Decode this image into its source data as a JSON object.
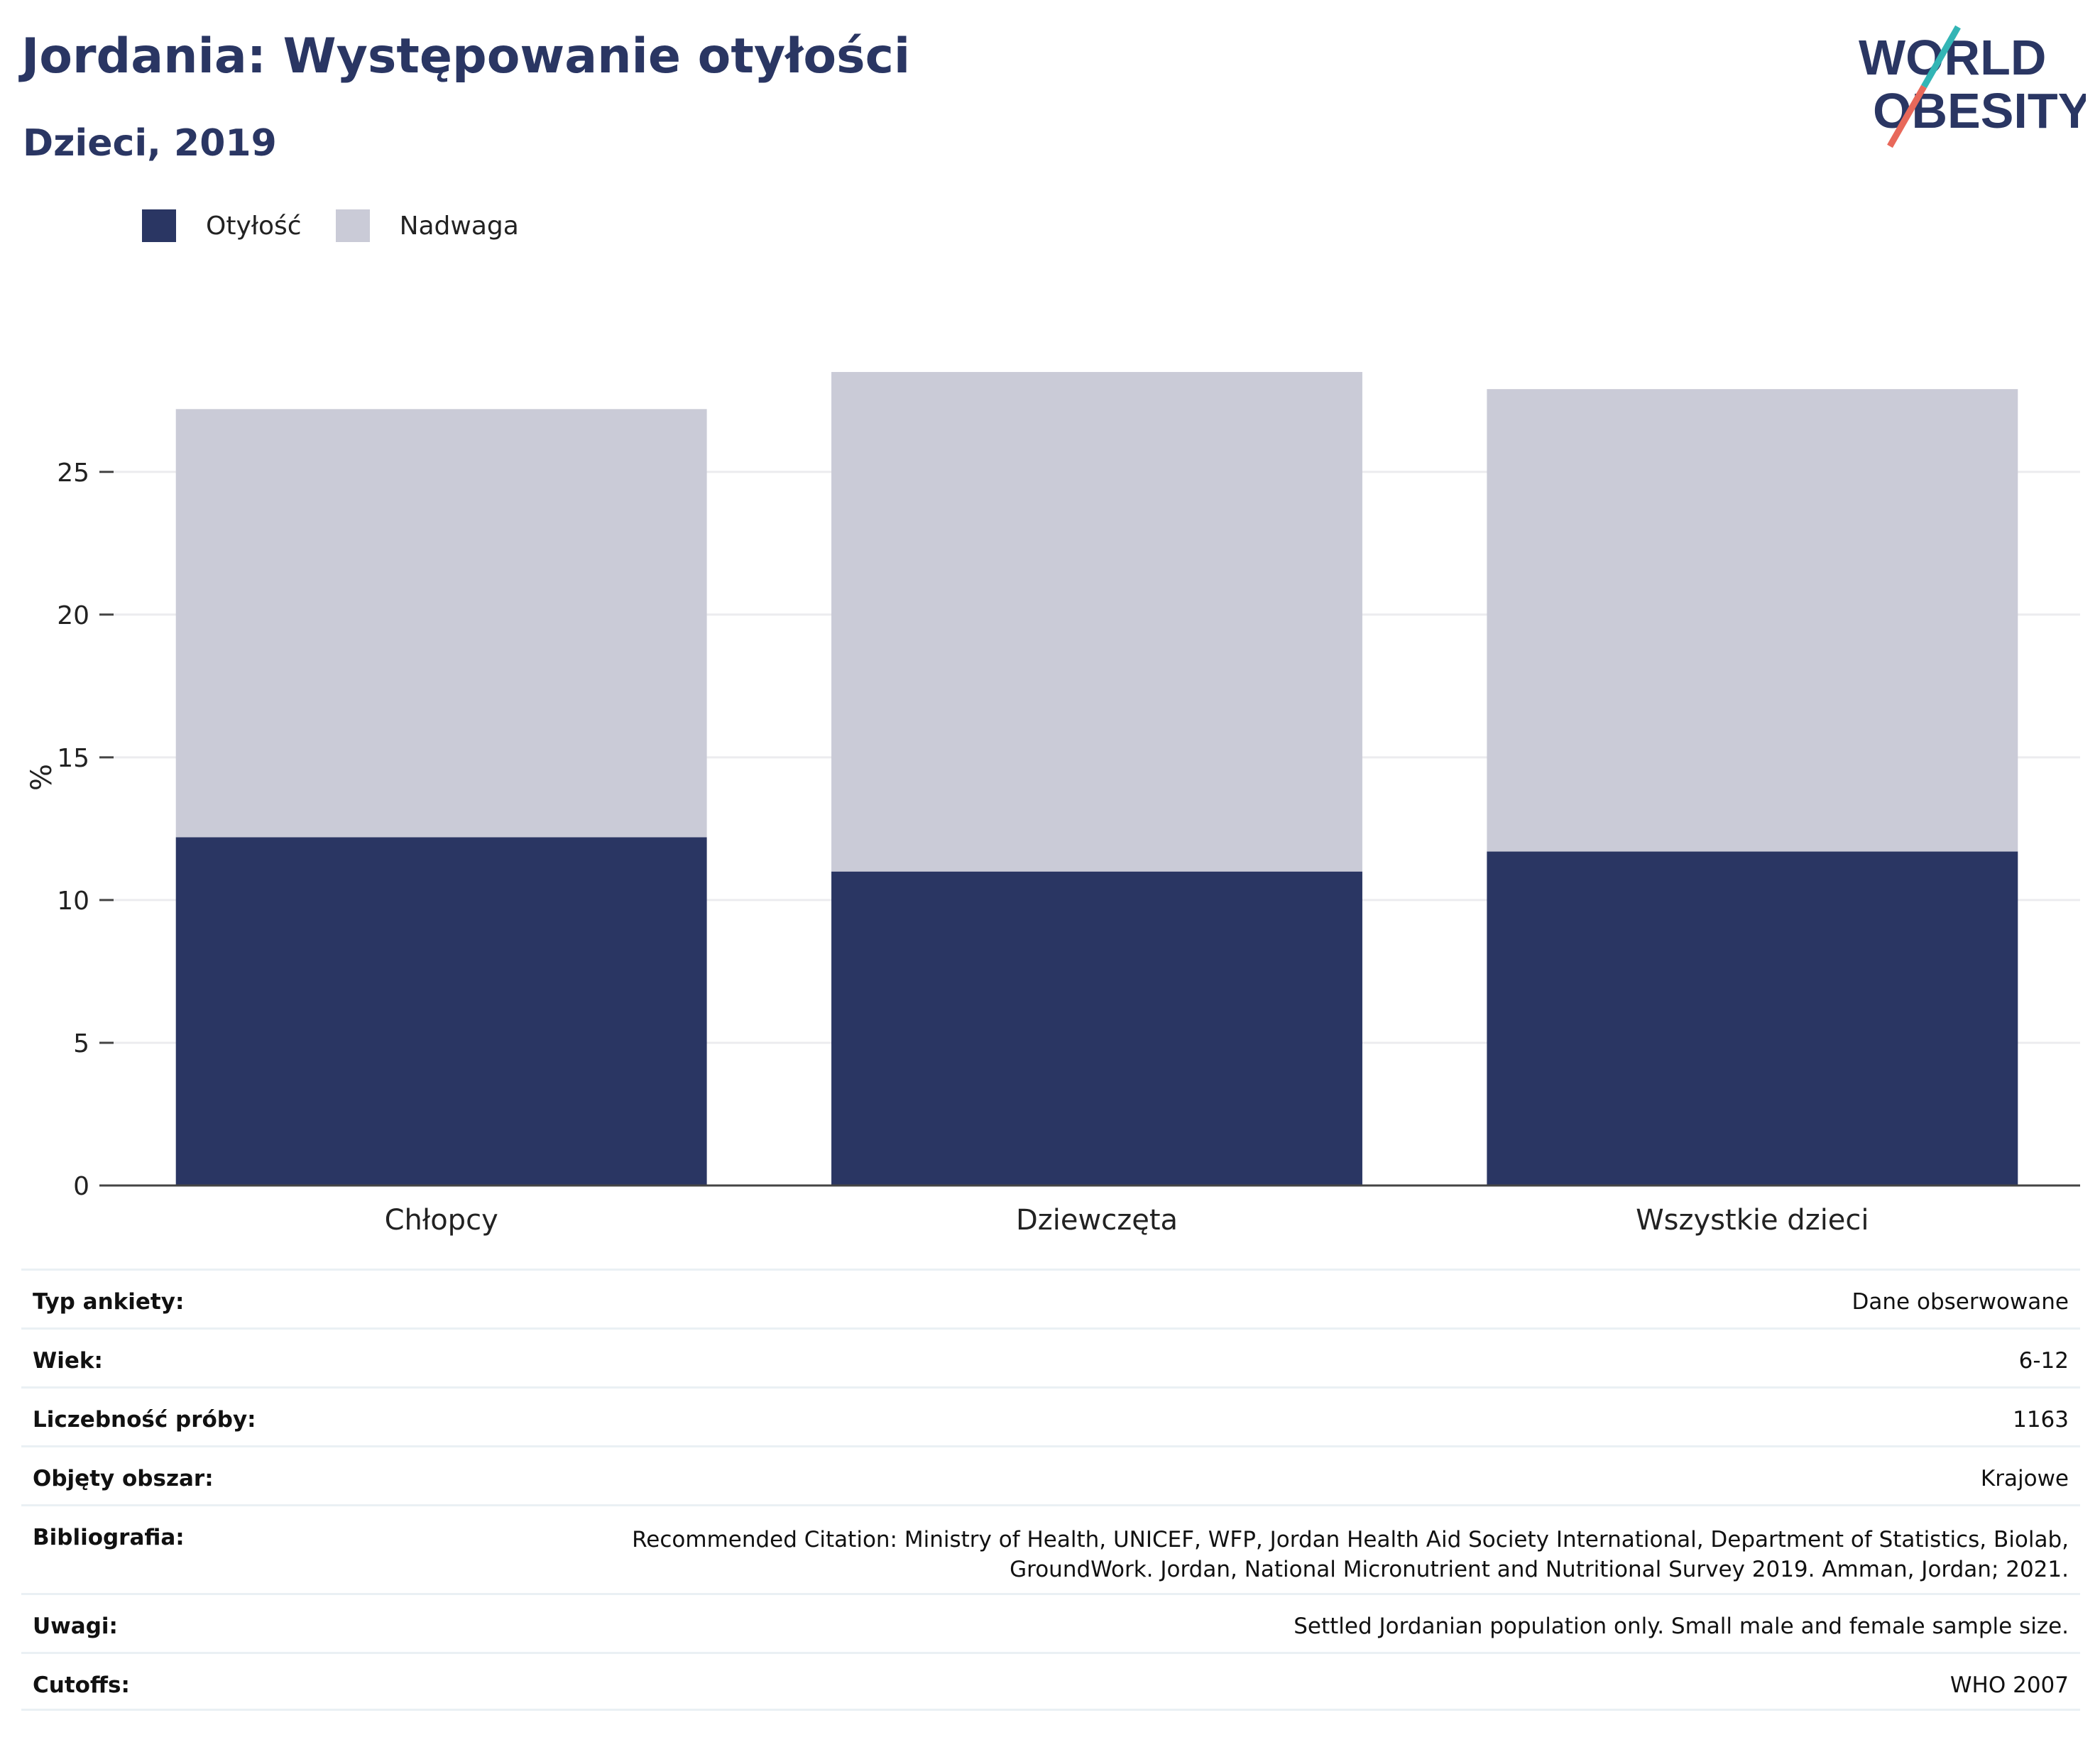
{
  "header": {
    "title": "Jordania: Występowanie otyłości",
    "subtitle": "Dzieci, 2019"
  },
  "logo": {
    "line1": "WORLD",
    "line2": "OBESITY",
    "colors": {
      "text": "#2a3663",
      "slash_top": "#33b5b5",
      "slash_bottom": "#e8685a"
    }
  },
  "legend": [
    {
      "label": "Otyłość",
      "color": "#2a3663"
    },
    {
      "label": "Nadwaga",
      "color": "#cacbd7"
    }
  ],
  "chart_data": {
    "type": "bar",
    "stacked": true,
    "categories": [
      "Chłopcy",
      "Dziewczęta",
      "Wszystkie dzieci"
    ],
    "series": [
      {
        "name": "Otyłość",
        "values": [
          12.2,
          11.0,
          11.7
        ],
        "color": "#2a3663"
      },
      {
        "name": "Nadwaga",
        "values": [
          15.0,
          17.5,
          16.2
        ],
        "color": "#cacbd7"
      }
    ],
    "ylabel": "%",
    "xlabel": "",
    "ylim": [
      0,
      28.6
    ],
    "yticks": [
      0,
      5,
      10,
      15,
      20,
      25
    ],
    "grid": true,
    "legend_position": "top-left"
  },
  "info_table": [
    {
      "key": "Typ ankiety:",
      "value": "Dane obserwowane"
    },
    {
      "key": "Wiek:",
      "value": "6-12"
    },
    {
      "key": "Liczebność próby:",
      "value": "1163"
    },
    {
      "key": "Objęty obszar:",
      "value": "Krajowe"
    },
    {
      "key": "Bibliografia:",
      "value": "Recommended Citation: Ministry of Health, UNICEF, WFP, Jordan Health Aid Society International, Department of Statistics, Biolab, GroundWork. Jordan, National Micronutrient and Nutritional Survey 2019. Amman, Jordan; 2021."
    },
    {
      "key": "Uwagi:",
      "value": "Settled Jordanian population only. Small male and female sample size."
    },
    {
      "key": "Cutoffs:",
      "value": "WHO 2007"
    }
  ]
}
